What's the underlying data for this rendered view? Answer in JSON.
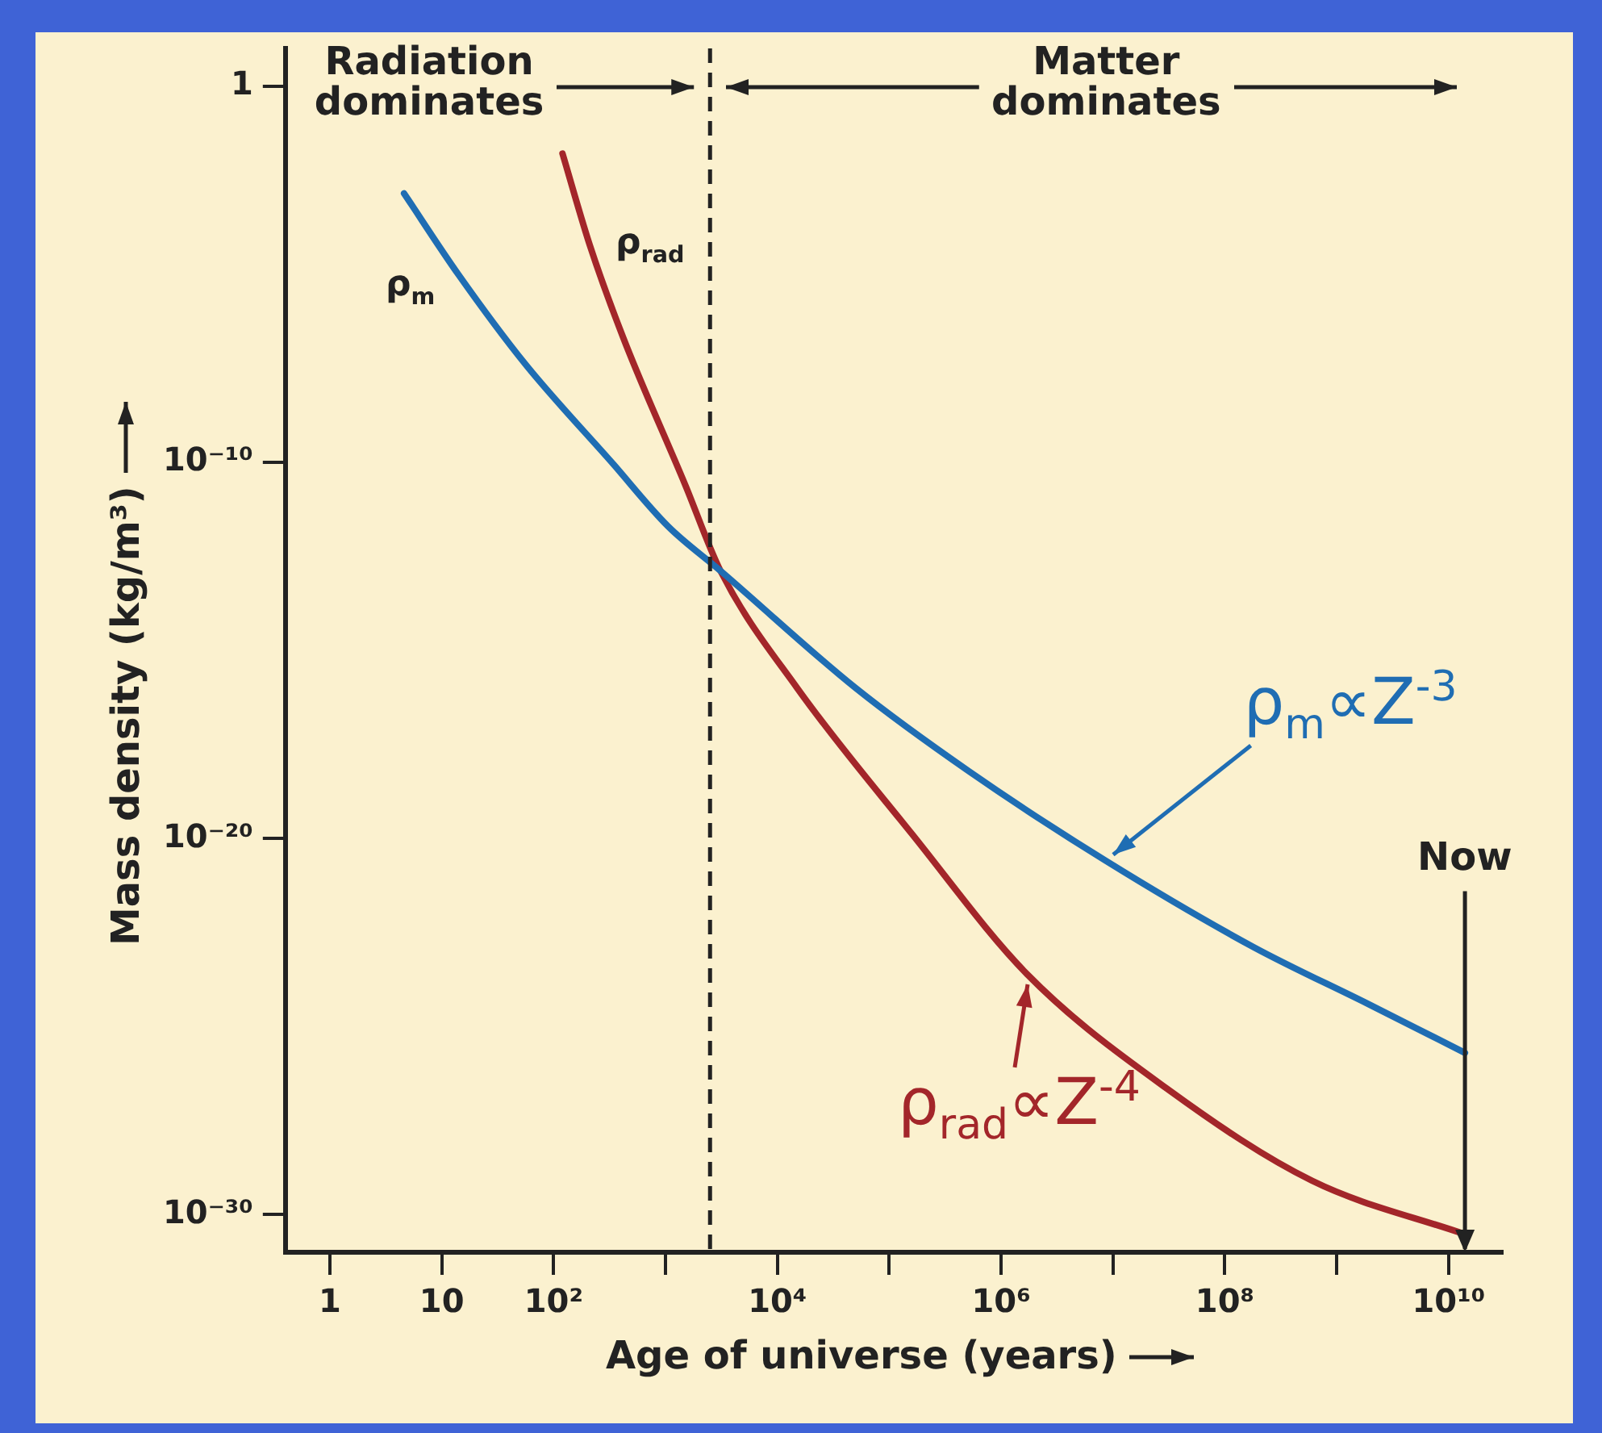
{
  "chart_data": {
    "type": "line",
    "xlabel": "Age of universe (years)",
    "ylabel": "Mass density (kg/m³)",
    "log": "xy",
    "grid": false,
    "legend": false,
    "marker": "none",
    "line_style": "solid",
    "xlim": [
      0.4,
      30000000000.0
    ],
    "ylim": [
      1e-31,
      10
    ],
    "xticks": [
      1,
      10,
      {
        "value": 100,
        "label": "10²"
      },
      {
        "value": 1000,
        "label": null
      },
      {
        "value": 10000,
        "label": "10⁴"
      },
      {
        "value": 100000,
        "label": null
      },
      {
        "value": 1000000,
        "label": "10⁶"
      },
      {
        "value": 10000000,
        "label": null
      },
      {
        "value": 100000000,
        "label": "10⁸"
      },
      {
        "value": 1000000000,
        "label": null
      },
      {
        "value": 10000000000,
        "label": "10¹⁰"
      }
    ],
    "yticks": [
      {
        "value": 1e-30,
        "label": "10⁻³⁰"
      },
      {
        "value": 1e-20,
        "label": "10⁻²⁰"
      },
      {
        "value": 1e-10,
        "label": "10⁻¹⁰"
      },
      1
    ],
    "series": [
      {
        "name": "ρ$_{m}$",
        "color": "#1f6db3",
        "x": [
          4.6,
          14,
          56,
          330,
          1050,
          3100,
          50000,
          520000,
          8700000,
          180000000,
          1900000000,
          14000000000
        ],
        "values": [
          0.0014,
          1e-05,
          4e-08,
          1e-10,
          2e-12,
          1.3e-13,
          1e-16,
          6e-19,
          2.5e-21,
          1.3e-23,
          4e-25,
          2e-26
        ]
      },
      {
        "name": "ρ$_{rad}$",
        "color": "#a3262a",
        "x": [
          120,
          210,
          420,
          1500,
          3100,
          15000,
          160000,
          1700000,
          32000000,
          600000000,
          14000000000
        ],
        "values": [
          0.016,
          6e-05,
          2e-07,
          2.5e-11,
          1.3e-13,
          1e-16,
          1.3e-20,
          2.5e-24,
          2e-27,
          8e-30,
          3e-31
        ]
      }
    ],
    "ref_lines": [
      {
        "axis": "x",
        "value": 2500,
        "line_style": "dashed",
        "color": "#222222"
      },
      {
        "axis": "x",
        "value": 14000000000,
        "label": "Now",
        "color": "#222222"
      }
    ],
    "annotations": [
      "Radiation dominates",
      "Matter dominates",
      {
        "text": "ρ$_{m}$∝Z$^{-3}$",
        "x": 8700000,
        "y": 2.5e-21
      },
      {
        "text": "ρ$_{rad}$∝Z$^{-4}$",
        "x": 1700000,
        "y": 2.5e-24
      }
    ]
  }
}
